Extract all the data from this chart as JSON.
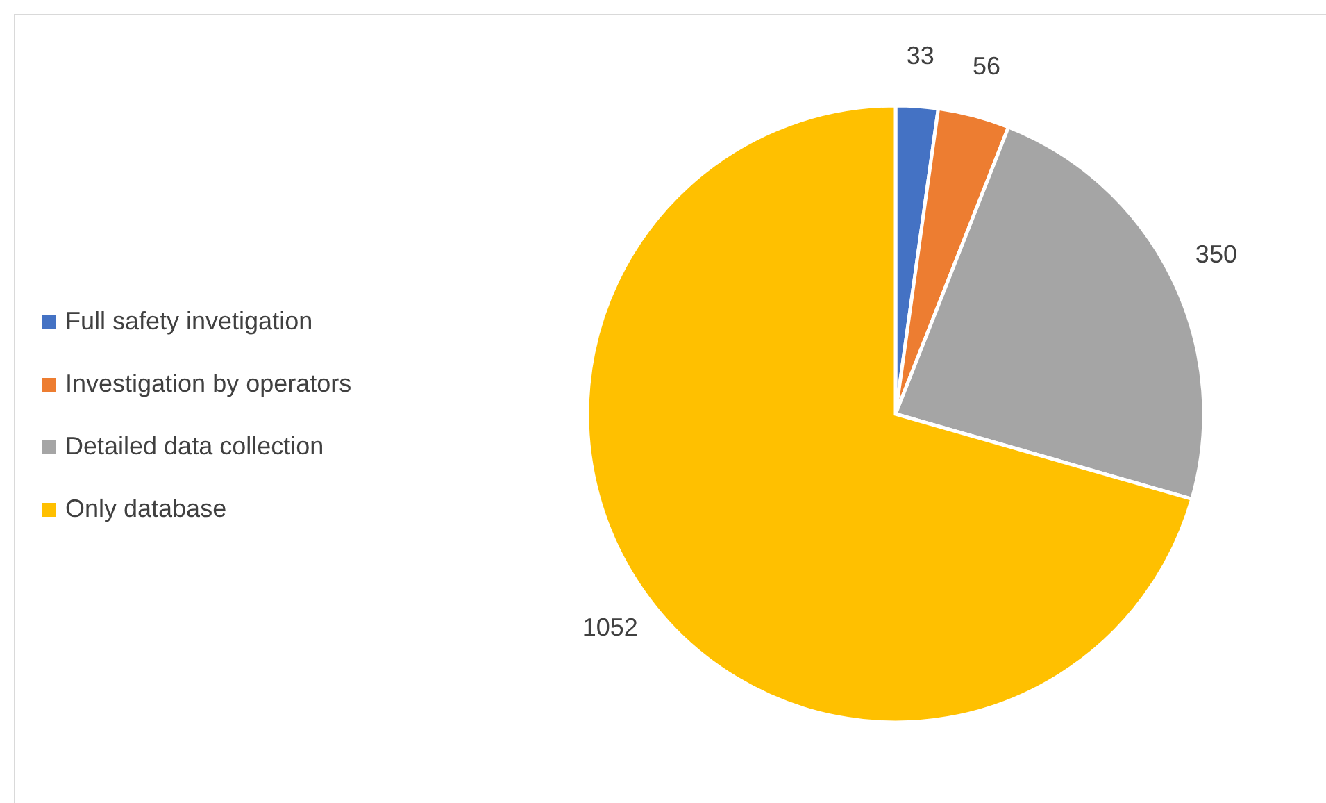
{
  "chart_data": {
    "type": "pie",
    "categories": [
      "Full safety invetigation",
      "Investigation by operators",
      "Detailed data collection",
      "Only database"
    ],
    "values": [
      33,
      56,
      350,
      1052
    ],
    "colors": [
      "#4472c4",
      "#ed7d31",
      "#a5a5a5",
      "#ffc000"
    ],
    "data_labels": true,
    "legend": "left"
  }
}
